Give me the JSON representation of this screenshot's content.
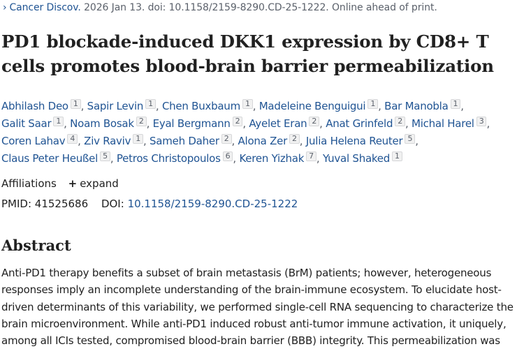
{
  "citation": {
    "journal": "Cancer Discov.",
    "rest": "2026 Jan 13. doi: 10.1158/2159-8290.CD-25-1222. Online ahead of print."
  },
  "title_lines": [
    "PD1 blockade-induced DKK1 expression by CD8+ T",
    "cells promotes blood-brain barrier permeabilization"
  ],
  "author_lines": [
    [
      {
        "name": "Abhilash Deo",
        "aff": "1"
      },
      {
        "name": "Sapir Levin",
        "aff": "1"
      },
      {
        "name": "Chen Buxbaum",
        "aff": "1"
      },
      {
        "name": "Madeleine Benguigui",
        "aff": "1"
      },
      {
        "name": "Bar Manobla",
        "aff": "1"
      }
    ],
    [
      {
        "name": "Galit Saar",
        "aff": "1"
      },
      {
        "name": "Noam Bosak",
        "aff": "2"
      },
      {
        "name": "Eyal Bergmann",
        "aff": "2"
      },
      {
        "name": "Ayelet Eran",
        "aff": "2"
      },
      {
        "name": "Anat Grinfeld",
        "aff": "2"
      },
      {
        "name": "Michal Harel",
        "aff": "3"
      }
    ],
    [
      {
        "name": "Coren Lahav",
        "aff": "4"
      },
      {
        "name": "Ziv Raviv",
        "aff": "1"
      },
      {
        "name": "Sameh Daher",
        "aff": "2"
      },
      {
        "name": "Alona Zer",
        "aff": "2"
      },
      {
        "name": "Julia Helena Reuter",
        "aff": "5"
      }
    ],
    [
      {
        "name": "Claus Peter Heußel",
        "aff": "5"
      },
      {
        "name": "Petros Christopoulos",
        "aff": "6"
      },
      {
        "name": "Keren Yizhak",
        "aff": "7"
      },
      {
        "name": "Yuval Shaked",
        "aff": "1"
      }
    ]
  ],
  "affiliations": {
    "label": "Affiliations",
    "expand_label": "expand"
  },
  "ids": {
    "pmid_label": "PMID:",
    "pmid": "41525686",
    "doi_label": "DOI:",
    "doi": "10.1158/2159-8290.CD-25-1222"
  },
  "abstract": {
    "heading": "Abstract",
    "lines": [
      "Anti-PD1 therapy benefits a subset of brain metastasis (BrM) patients; however, heterogeneous",
      "responses imply an incomplete understanding of the brain-immune ecosystem. To elucidate host-",
      "driven determinants of this variability, we performed single-cell RNA sequencing to characterize the",
      "brain microenvironment. While anti-PD1 induced robust anti-tumor immune activation, it uniquely,",
      "among all ICIs tested, compromised blood-brain barrier (BBB) integrity. This permeabilization was"
    ]
  }
}
